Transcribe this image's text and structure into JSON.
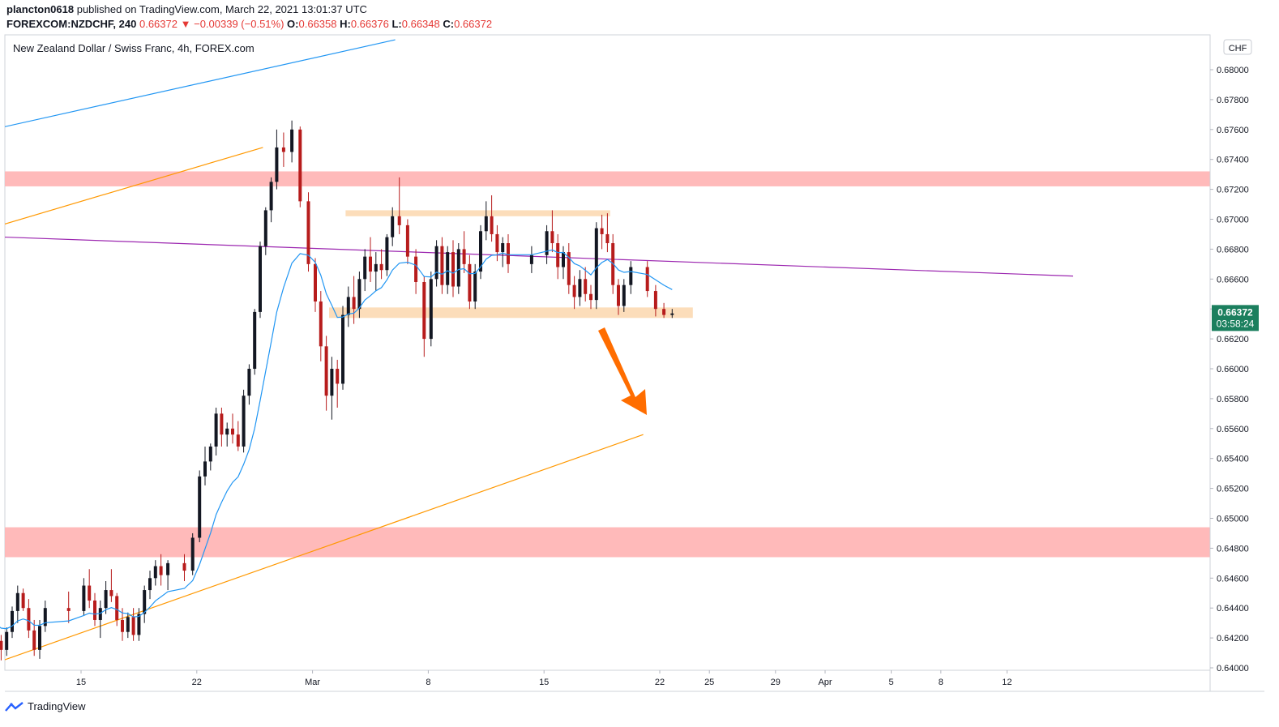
{
  "header": {
    "publisher": "plancton0618",
    "published_text": "published on TradingView.com, March 22, 2021 13:01:37 UTC",
    "symbol": "FOREXCOM:NZDCHF, 240",
    "last": "0.66372",
    "arrow": "▼",
    "change": "−0.00339 (−0.51%)",
    "o_label": "O:",
    "o_value": "0.66358",
    "h_label": "H:",
    "h_value": "0.66376",
    "l_label": "L:",
    "l_value": "0.66348",
    "c_label": "C:",
    "c_value": "0.66372"
  },
  "chart_title": "New Zealand Dollar / Swiss Franc, 4h, FOREX.com",
  "brand": "TradingView",
  "colors": {
    "up": "#131722",
    "down": "#b71c1c",
    "ma": "#2196f3",
    "zone_red": "#ffb3b3",
    "zone_orange": "#fbd7ae",
    "orange_line": "#ff9800",
    "purple_line": "#9c27b0",
    "blue_line": "#2196f3",
    "arrow": "#ff6d00",
    "price_tag": "#1b7f5e"
  },
  "chart_data": {
    "type": "candlestick",
    "currency_badge": "CHF",
    "last_price_label": "0.66372",
    "countdown_label": "03:58:24",
    "ylim": [
      0.64,
      0.682
    ],
    "y_ticks": [
      "0.64000",
      "0.64200",
      "0.64400",
      "0.64600",
      "0.64800",
      "0.65000",
      "0.65200",
      "0.65400",
      "0.65600",
      "0.65800",
      "0.66000",
      "0.66200",
      "0.66400",
      "0.66600",
      "0.66800",
      "0.67000",
      "0.67200",
      "0.67400",
      "0.67600",
      "0.67800",
      "0.68000"
    ],
    "x_ticks": [
      {
        "label": "15",
        "date": "2021-02-15"
      },
      {
        "label": "22",
        "date": "2021-02-22"
      },
      {
        "label": "Mar",
        "date": "2021-03-01"
      },
      {
        "label": "8",
        "date": "2021-03-08"
      },
      {
        "label": "15",
        "date": "2021-03-15"
      },
      {
        "label": "22",
        "date": "2021-03-22"
      },
      {
        "label": "25",
        "date": "2021-03-25"
      },
      {
        "label": "29",
        "date": "2021-03-29"
      },
      {
        "label": "Apr",
        "date": "2021-04-01"
      },
      {
        "label": "5",
        "date": "2021-04-05"
      },
      {
        "label": "8",
        "date": "2021-04-08"
      },
      {
        "label": "12",
        "date": "2021-04-12"
      }
    ],
    "zones": [
      {
        "kind": "resistance",
        "from": 0.6722,
        "to": 0.6732,
        "color": "red"
      },
      {
        "kind": "support",
        "from": 0.6474,
        "to": 0.6494,
        "color": "red"
      },
      {
        "kind": "range-top",
        "from": 0.6702,
        "to": 0.6706,
        "start": "2021-03-03",
        "end": "2021-03-19",
        "color": "orange"
      },
      {
        "kind": "range-bottom",
        "from": 0.6634,
        "to": 0.6641,
        "start": "2021-03-02",
        "end": "2021-03-24",
        "color": "orange"
      }
    ],
    "trendlines": [
      {
        "color": "blue",
        "start": [
          "2021-02-08",
          0.6756
        ],
        "end": [
          "2021-03-06",
          0.682
        ]
      },
      {
        "color": "orange",
        "start": [
          "2021-02-08",
          0.6689
        ],
        "end": [
          "2021-02-26",
          0.6748
        ]
      },
      {
        "color": "orange",
        "start": [
          "2021-02-09",
          0.64
        ],
        "end": [
          "2021-03-21",
          0.6556
        ]
      },
      {
        "color": "purple",
        "start": [
          "2021-02-08",
          0.6689
        ],
        "end": [
          "2021-04-16",
          0.6662
        ]
      }
    ],
    "ohlc": [
      [
        "2021-02-08",
        0.6443,
        0.6455,
        0.6432,
        0.6438
      ],
      [
        "2021-02-08",
        0.6438,
        0.6441,
        0.6425,
        0.643
      ],
      [
        "2021-02-09",
        0.643,
        0.6433,
        0.641,
        0.6414
      ],
      [
        "2021-02-09",
        0.6414,
        0.6426,
        0.641,
        0.642
      ],
      [
        "2021-02-09",
        0.642,
        0.6432,
        0.6415,
        0.6418
      ],
      [
        "2021-02-10",
        0.6418,
        0.6422,
        0.6405,
        0.6412
      ],
      [
        "2021-02-10",
        0.6412,
        0.6427,
        0.6408,
        0.6424
      ],
      [
        "2021-02-10",
        0.6424,
        0.6441,
        0.642,
        0.6438
      ],
      [
        "2021-02-11",
        0.6438,
        0.6455,
        0.643,
        0.645
      ],
      [
        "2021-02-11",
        0.645,
        0.6453,
        0.6438,
        0.644
      ],
      [
        "2021-02-11",
        0.644,
        0.6446,
        0.642,
        0.6425
      ],
      [
        "2021-02-12",
        0.6425,
        0.6432,
        0.6408,
        0.6412
      ],
      [
        "2021-02-12",
        0.6412,
        0.6432,
        0.6406,
        0.6428
      ],
      [
        "2021-02-12",
        0.6428,
        0.6445,
        0.6424,
        0.644
      ],
      [
        "2021-02-14",
        0.644,
        0.6451,
        0.643,
        0.6438
      ],
      [
        "2021-02-15",
        0.6438,
        0.646,
        0.6435,
        0.6455
      ],
      [
        "2021-02-15",
        0.6455,
        0.6466,
        0.644,
        0.6445
      ],
      [
        "2021-02-15",
        0.6445,
        0.645,
        0.6428,
        0.6432
      ],
      [
        "2021-02-16",
        0.6432,
        0.6445,
        0.642,
        0.644
      ],
      [
        "2021-02-16",
        0.644,
        0.6458,
        0.6436,
        0.6452
      ],
      [
        "2021-02-16",
        0.6452,
        0.6466,
        0.6444,
        0.6448
      ],
      [
        "2021-02-17",
        0.6448,
        0.645,
        0.6428,
        0.6432
      ],
      [
        "2021-02-17",
        0.6432,
        0.644,
        0.6418,
        0.6424
      ],
      [
        "2021-02-17",
        0.6424,
        0.6437,
        0.642,
        0.6434
      ],
      [
        "2021-02-18",
        0.6434,
        0.644,
        0.6418,
        0.6422
      ],
      [
        "2021-02-18",
        0.6422,
        0.644,
        0.6418,
        0.6436
      ],
      [
        "2021-02-18",
        0.6436,
        0.6455,
        0.643,
        0.6452
      ],
      [
        "2021-02-19",
        0.6452,
        0.6465,
        0.6446,
        0.646
      ],
      [
        "2021-02-19",
        0.646,
        0.6472,
        0.6455,
        0.6468
      ],
      [
        "2021-02-19",
        0.6468,
        0.6476,
        0.6455,
        0.6462
      ],
      [
        "2021-02-20",
        0.6462,
        0.6472,
        0.6452,
        0.647
      ],
      [
        "2021-02-21",
        0.647,
        0.6476,
        0.6458,
        0.6465
      ],
      [
        "2021-02-21",
        0.6465,
        0.649,
        0.6462,
        0.6487
      ],
      [
        "2021-02-22",
        0.6487,
        0.6532,
        0.6484,
        0.6528
      ],
      [
        "2021-02-22",
        0.6528,
        0.6548,
        0.6522,
        0.6538
      ],
      [
        "2021-02-22",
        0.6538,
        0.655,
        0.6532,
        0.6548
      ],
      [
        "2021-02-23",
        0.6548,
        0.6574,
        0.6542,
        0.657
      ],
      [
        "2021-02-23",
        0.657,
        0.6574,
        0.6548,
        0.6556
      ],
      [
        "2021-02-23",
        0.6556,
        0.6564,
        0.6548,
        0.656
      ],
      [
        "2021-02-24",
        0.656,
        0.657,
        0.655,
        0.6556
      ],
      [
        "2021-02-24",
        0.6556,
        0.6565,
        0.6545,
        0.6548
      ],
      [
        "2021-02-24",
        0.6548,
        0.6586,
        0.6544,
        0.6582
      ],
      [
        "2021-02-25",
        0.6582,
        0.6603,
        0.6576,
        0.66
      ],
      [
        "2021-02-25",
        0.66,
        0.664,
        0.6596,
        0.6638
      ],
      [
        "2021-02-25",
        0.6638,
        0.6685,
        0.6634,
        0.6682
      ],
      [
        "2021-02-26",
        0.6682,
        0.6708,
        0.6676,
        0.6706
      ],
      [
        "2021-02-26",
        0.6706,
        0.6728,
        0.6698,
        0.6725
      ],
      [
        "2021-02-26",
        0.6725,
        0.676,
        0.672,
        0.6748
      ],
      [
        "2021-02-27",
        0.6748,
        0.6758,
        0.6735,
        0.6745
      ],
      [
        "2021-02-27",
        0.6745,
        0.6766,
        0.6738,
        0.676
      ],
      [
        "2021-02-28",
        0.676,
        0.6762,
        0.6708,
        0.6712
      ],
      [
        "2021-02-28",
        0.6712,
        0.6718,
        0.6665,
        0.667
      ],
      [
        "2021-03-01",
        0.667,
        0.6674,
        0.6638,
        0.6645
      ],
      [
        "2021-03-01",
        0.6645,
        0.6652,
        0.6605,
        0.6615
      ],
      [
        "2021-03-01",
        0.6615,
        0.6622,
        0.6572,
        0.6582
      ],
      [
        "2021-03-02",
        0.6582,
        0.6608,
        0.6566,
        0.66
      ],
      [
        "2021-03-02",
        0.66,
        0.6606,
        0.6574,
        0.659
      ],
      [
        "2021-03-02",
        0.659,
        0.6642,
        0.6586,
        0.6636
      ],
      [
        "2021-03-03",
        0.6636,
        0.6655,
        0.6628,
        0.6648
      ],
      [
        "2021-03-03",
        0.6648,
        0.6662,
        0.663,
        0.664
      ],
      [
        "2021-03-03",
        0.664,
        0.6665,
        0.6634,
        0.666
      ],
      [
        "2021-03-04",
        0.666,
        0.668,
        0.6652,
        0.6675
      ],
      [
        "2021-03-04",
        0.6675,
        0.6688,
        0.6658,
        0.6665
      ],
      [
        "2021-03-04",
        0.6665,
        0.6678,
        0.6652,
        0.667
      ],
      [
        "2021-03-05",
        0.667,
        0.668,
        0.666,
        0.6666
      ],
      [
        "2021-03-05",
        0.6666,
        0.669,
        0.6662,
        0.6688
      ],
      [
        "2021-03-05",
        0.6688,
        0.6708,
        0.6682,
        0.6702
      ],
      [
        "2021-03-06",
        0.6702,
        0.6728,
        0.669,
        0.6696
      ],
      [
        "2021-03-06",
        0.6696,
        0.67,
        0.667,
        0.6675
      ],
      [
        "2021-03-07",
        0.6675,
        0.668,
        0.665,
        0.6658
      ],
      [
        "2021-03-07",
        0.6658,
        0.6662,
        0.6608,
        0.662
      ],
      [
        "2021-03-08",
        0.662,
        0.6665,
        0.6615,
        0.666
      ],
      [
        "2021-03-08",
        0.666,
        0.6686,
        0.6655,
        0.6682
      ],
      [
        "2021-03-08",
        0.6682,
        0.6688,
        0.665,
        0.6656
      ],
      [
        "2021-03-09",
        0.6656,
        0.6682,
        0.665,
        0.6678
      ],
      [
        "2021-03-09",
        0.6678,
        0.6686,
        0.6648,
        0.6655
      ],
      [
        "2021-03-09",
        0.6655,
        0.6684,
        0.665,
        0.668
      ],
      [
        "2021-03-10",
        0.668,
        0.6692,
        0.6664,
        0.667
      ],
      [
        "2021-03-10",
        0.667,
        0.6676,
        0.664,
        0.6645
      ],
      [
        "2021-03-10",
        0.6645,
        0.667,
        0.664,
        0.6665
      ],
      [
        "2021-03-11",
        0.6665,
        0.6696,
        0.666,
        0.6692
      ],
      [
        "2021-03-11",
        0.6692,
        0.6712,
        0.6686,
        0.6702
      ],
      [
        "2021-03-11",
        0.6702,
        0.6716,
        0.6685,
        0.669
      ],
      [
        "2021-03-12",
        0.669,
        0.6696,
        0.6672,
        0.6678
      ],
      [
        "2021-03-12",
        0.6678,
        0.6688,
        0.6668,
        0.6684
      ],
      [
        "2021-03-12",
        0.6684,
        0.669,
        0.6664,
        0.667
      ],
      [
        "2021-03-14",
        0.667,
        0.6682,
        0.6664,
        0.6676
      ],
      [
        "2021-03-15",
        0.6676,
        0.6696,
        0.667,
        0.6692
      ],
      [
        "2021-03-15",
        0.6692,
        0.6706,
        0.6678,
        0.6684
      ],
      [
        "2021-03-15",
        0.6684,
        0.669,
        0.666,
        0.6668
      ],
      [
        "2021-03-16",
        0.6668,
        0.6682,
        0.666,
        0.6678
      ],
      [
        "2021-03-16",
        0.6678,
        0.6684,
        0.665,
        0.6656
      ],
      [
        "2021-03-16",
        0.6656,
        0.6662,
        0.664,
        0.6648
      ],
      [
        "2021-03-17",
        0.6648,
        0.6666,
        0.6642,
        0.666
      ],
      [
        "2021-03-17",
        0.666,
        0.6668,
        0.6645,
        0.665
      ],
      [
        "2021-03-17",
        0.665,
        0.6656,
        0.664,
        0.6646
      ],
      [
        "2021-03-18",
        0.6646,
        0.6698,
        0.664,
        0.6694
      ],
      [
        "2021-03-18",
        0.6694,
        0.6703,
        0.668,
        0.669
      ],
      [
        "2021-03-18",
        0.669,
        0.6704,
        0.6678,
        0.6684
      ],
      [
        "2021-03-19",
        0.6684,
        0.669,
        0.665,
        0.6656
      ],
      [
        "2021-03-19",
        0.6656,
        0.666,
        0.6636,
        0.6642
      ],
      [
        "2021-03-19",
        0.6642,
        0.666,
        0.6638,
        0.6656
      ],
      [
        "2021-03-20",
        0.6656,
        0.6672,
        0.665,
        0.6668
      ],
      [
        "2021-03-21",
        0.6668,
        0.6672,
        0.6648,
        0.6652
      ],
      [
        "2021-03-21",
        0.6652,
        0.6656,
        0.6635,
        0.664
      ],
      [
        "2021-03-22",
        0.664,
        0.6644,
        0.6634,
        0.6636
      ],
      [
        "2021-03-22",
        0.6636,
        0.664,
        0.6634,
        0.6637
      ]
    ]
  }
}
